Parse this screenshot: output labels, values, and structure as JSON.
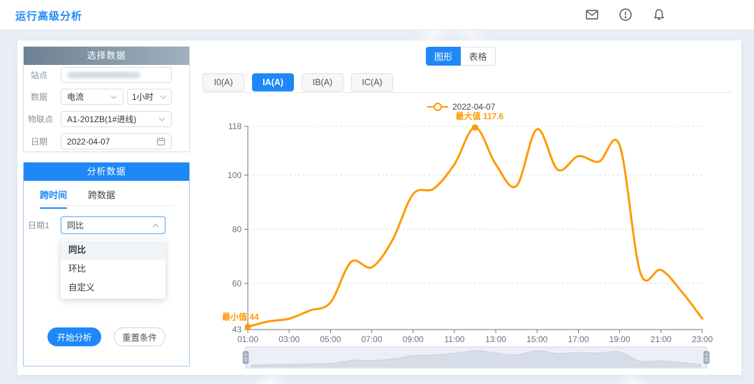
{
  "page": {
    "title": "运行高级分析",
    "accent_color": "#1e88f7"
  },
  "topbar": {
    "icons": [
      "mail-icon",
      "alert-circle-icon",
      "bell-icon"
    ]
  },
  "select_panel": {
    "title": "选择数据",
    "site_label": "站点",
    "site_value": "",
    "data_label": "数据",
    "data_type_value": "电流",
    "data_interval_value": "1小时",
    "iot_label": "物联点",
    "iot_value": "A1-201ZB(1#进线)",
    "date_label": "日期",
    "date_value": "2022-04-07"
  },
  "analysis_panel": {
    "title": "分析数据",
    "tabs": [
      {
        "label": "跨时间",
        "active": true
      },
      {
        "label": "跨数据",
        "active": false
      }
    ],
    "date1_label": "日期1",
    "date1_value": "同比",
    "dropdown_options": [
      {
        "label": "同比",
        "selected": true
      },
      {
        "label": "环比",
        "selected": false
      },
      {
        "label": "自定义",
        "selected": false
      }
    ],
    "start_button": "开始分析",
    "reset_button": "重置条件"
  },
  "chart_area": {
    "view_toggle": [
      {
        "label": "图形",
        "active": true
      },
      {
        "label": "表格",
        "active": false
      }
    ],
    "series_tabs": [
      {
        "label": "I0(A)",
        "active": false
      },
      {
        "label": "IA(A)",
        "active": true
      },
      {
        "label": "IB(A)",
        "active": false
      },
      {
        "label": "IC(A)",
        "active": false
      }
    ]
  },
  "chart_data": {
    "type": "line",
    "smooth": true,
    "legend": [
      "2022-04-07"
    ],
    "legend_position": "top",
    "categories": [
      "01:00",
      "02:00",
      "03:00",
      "04:00",
      "05:00",
      "06:00",
      "07:00",
      "08:00",
      "09:00",
      "10:00",
      "11:00",
      "12:00",
      "13:00",
      "14:00",
      "15:00",
      "16:00",
      "17:00",
      "18:00",
      "19:00",
      "20:00",
      "21:00",
      "22:00",
      "23:00"
    ],
    "xlabel_every": 2,
    "series": [
      {
        "name": "2022-04-07",
        "color": "#ff9900",
        "values": [
          44,
          46,
          47,
          50,
          53,
          68,
          66,
          76,
          93,
          95,
          104,
          117.6,
          104,
          96,
          117,
          102,
          107,
          105,
          111,
          64,
          65,
          57,
          47
        ]
      }
    ],
    "ylim": [
      43,
      118
    ],
    "yticks": [
      43,
      60,
      80,
      100,
      118
    ],
    "grid": "horizontal-dashed",
    "annotations": {
      "max_label": "最大值",
      "max_value": "117.6",
      "max_index": 11,
      "min_label": "最小值",
      "min_value": "44",
      "min_index": 0
    },
    "datazoom_slider": true
  }
}
